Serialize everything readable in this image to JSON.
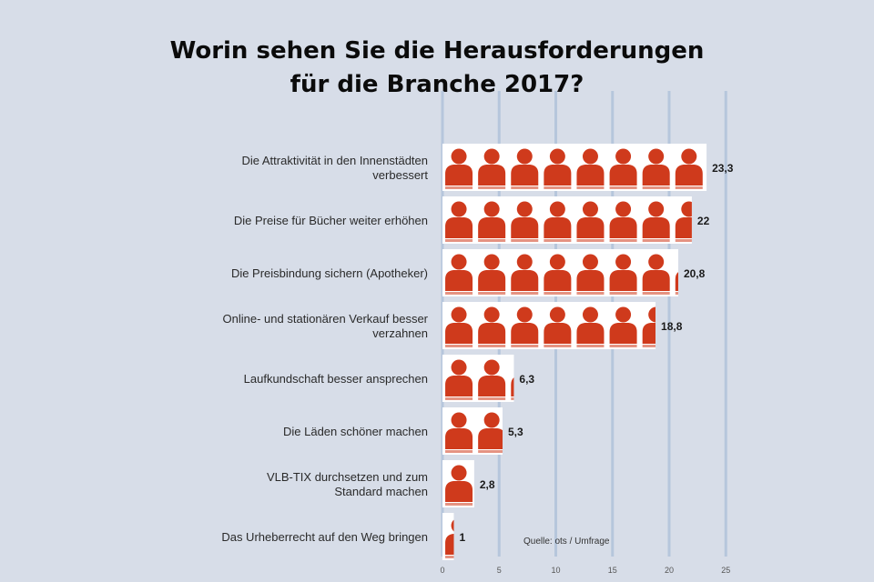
{
  "chart_data": {
    "type": "bar",
    "orientation": "horizontal",
    "title_lines": [
      "Worin sehen Sie die Herausforderungen",
      "für die Branche 2017?"
    ],
    "categories": [
      [
        "Die Attraktivität in den Innenstädten",
        "verbessert"
      ],
      [
        "Die Preise für Bücher weiter erhöhen"
      ],
      [
        "Die Preisbindung sichern (Apotheker)"
      ],
      [
        "Online- und stationären Verkauf besser",
        "verzahnen"
      ],
      [
        "Laufkundschaft besser ansprechen"
      ],
      [
        "Die Läden schöner machen"
      ],
      [
        "VLB-TIX durchsetzen und zum",
        "Standard machen"
      ],
      [
        "Das Urheberrecht auf den Weg bringen"
      ]
    ],
    "values": [
      23.3,
      22.0,
      20.8,
      18.8,
      6.3,
      5.3,
      2.8,
      1
    ],
    "value_labels": [
      "23,3",
      "22",
      "20,8",
      "18,8",
      "6,3",
      "5,3",
      "2,8",
      "1"
    ],
    "x_ticks": [
      "0",
      "5",
      "10",
      "15",
      "20",
      "25"
    ],
    "xlim": [
      0,
      25
    ],
    "units_per_icon": 2.9,
    "source": "Quelle: ots / Umfrage",
    "grid": true,
    "colors": {
      "icon": "#cf3a1c",
      "bar_bg": "#ffffff",
      "background": "#d7dde8",
      "grid": "#b6c6dc"
    }
  }
}
